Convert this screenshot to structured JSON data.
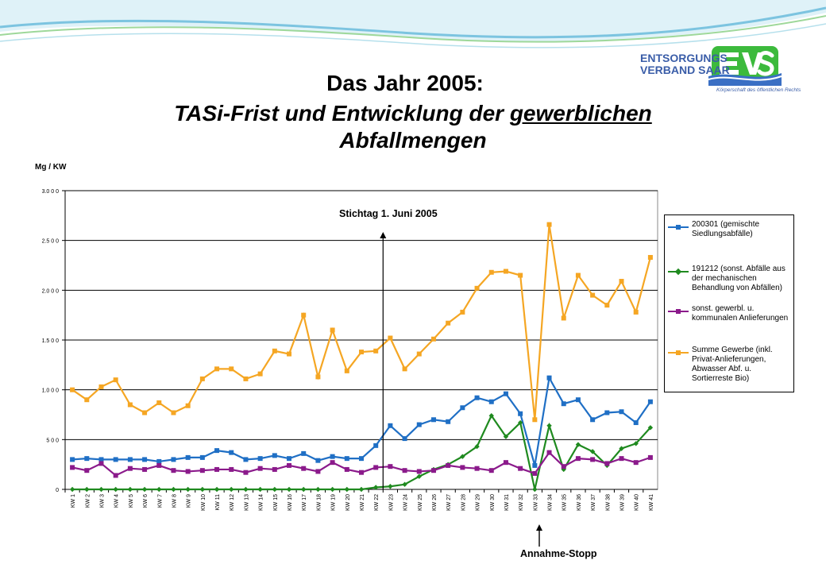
{
  "title": {
    "line1": "Das Jahr 2005:",
    "line2_pre": "TASi-Frist und Entwicklung der ",
    "line2_underlined": "gewerblichen",
    "line3": "Abfallmengen"
  },
  "logo": {
    "line1": "ENTSORGUNGS",
    "line2": "VERBAND SAAR",
    "mark": "EVS",
    "sub": "Körperschaft des öffentlichen Rechts",
    "colors": {
      "blue": "#3a5da8",
      "green": "#3cba3c"
    }
  },
  "annotations": {
    "stichtag": "Stichtag 1. Juni 2005",
    "annahme": "Annahme-Stopp"
  },
  "chart_data": {
    "type": "line",
    "ylabel": "Mg / KW",
    "ylim": [
      0,
      3000
    ],
    "yticks": [
      0,
      500,
      1000,
      1500,
      2000,
      2500,
      3000
    ],
    "ytick_labels": [
      "0",
      "5 0 0",
      "1.0 0 0",
      "1.5 0 0",
      "2.0 0 0",
      "2.5 0 0",
      "3.0 0 0"
    ],
    "grid": true,
    "legend_position": "right",
    "categories": [
      "KW 1",
      "KW 2",
      "KW 3",
      "KW 4",
      "KW 5",
      "KW 6",
      "KW 7",
      "KW 8",
      "KW 9",
      "KW 10",
      "KW 11",
      "KW 12",
      "KW 13",
      "KW 14",
      "KW 15",
      "KW 16",
      "KW 17",
      "KW 18",
      "KW 19",
      "KW 20",
      "KW 21",
      "KW 22",
      "KW 23",
      "KW 24",
      "KW 25",
      "KW 26",
      "KW 27",
      "KW 28",
      "KW 29",
      "KW 30",
      "KW 31",
      "KW 32",
      "KW 33",
      "KW 34",
      "KW 35",
      "KW 36",
      "KW 37",
      "KW 38",
      "KW 39",
      "KW 40",
      "KW 41"
    ],
    "series": [
      {
        "name": "200301 (gemischte Siedlungsabfälle)",
        "color": "#1f6fc5",
        "marker": "square",
        "values": [
          300,
          310,
          300,
          300,
          300,
          300,
          280,
          300,
          320,
          320,
          390,
          370,
          300,
          310,
          340,
          310,
          360,
          290,
          330,
          310,
          310,
          440,
          640,
          510,
          650,
          700,
          680,
          820,
          920,
          880,
          960,
          760,
          240,
          1120,
          860,
          900,
          700,
          770,
          780,
          670,
          880
        ]
      },
      {
        "name": "191212 (sonst. Abfälle aus der mechanischen Behandlung von Abfällen)",
        "color": "#1f8a1f",
        "marker": "diamond",
        "values": [
          0,
          0,
          0,
          0,
          0,
          0,
          0,
          0,
          0,
          0,
          0,
          0,
          0,
          0,
          0,
          0,
          0,
          0,
          0,
          0,
          0,
          20,
          30,
          50,
          130,
          200,
          250,
          330,
          430,
          740,
          530,
          670,
          0,
          640,
          200,
          450,
          380,
          240,
          410,
          460,
          620
        ]
      },
      {
        "name": "sonst. gewerbl. u. kommunalen Anlieferungen",
        "color": "#8b1a8b",
        "marker": "square",
        "values": [
          220,
          190,
          260,
          140,
          210,
          200,
          240,
          190,
          180,
          190,
          200,
          200,
          170,
          210,
          200,
          240,
          210,
          180,
          270,
          200,
          170,
          220,
          230,
          190,
          180,
          190,
          240,
          220,
          210,
          190,
          270,
          210,
          160,
          370,
          230,
          310,
          300,
          260,
          310,
          270,
          320
        ]
      },
      {
        "name": "Summe Gewerbe (inkl. Privat-Anlieferungen, Abwasser Abf. u. Sortierreste Bio)",
        "color": "#f5a623",
        "marker": "square",
        "values": [
          1000,
          900,
          1030,
          1100,
          850,
          770,
          870,
          770,
          840,
          1110,
          1210,
          1210,
          1110,
          1160,
          1390,
          1360,
          1750,
          1130,
          1600,
          1190,
          1380,
          1390,
          1520,
          1210,
          1360,
          1510,
          1670,
          1780,
          2020,
          2180,
          2190,
          2150,
          700,
          2660,
          1720,
          2150,
          1950,
          1850,
          2090,
          1780,
          2330
        ]
      }
    ]
  }
}
